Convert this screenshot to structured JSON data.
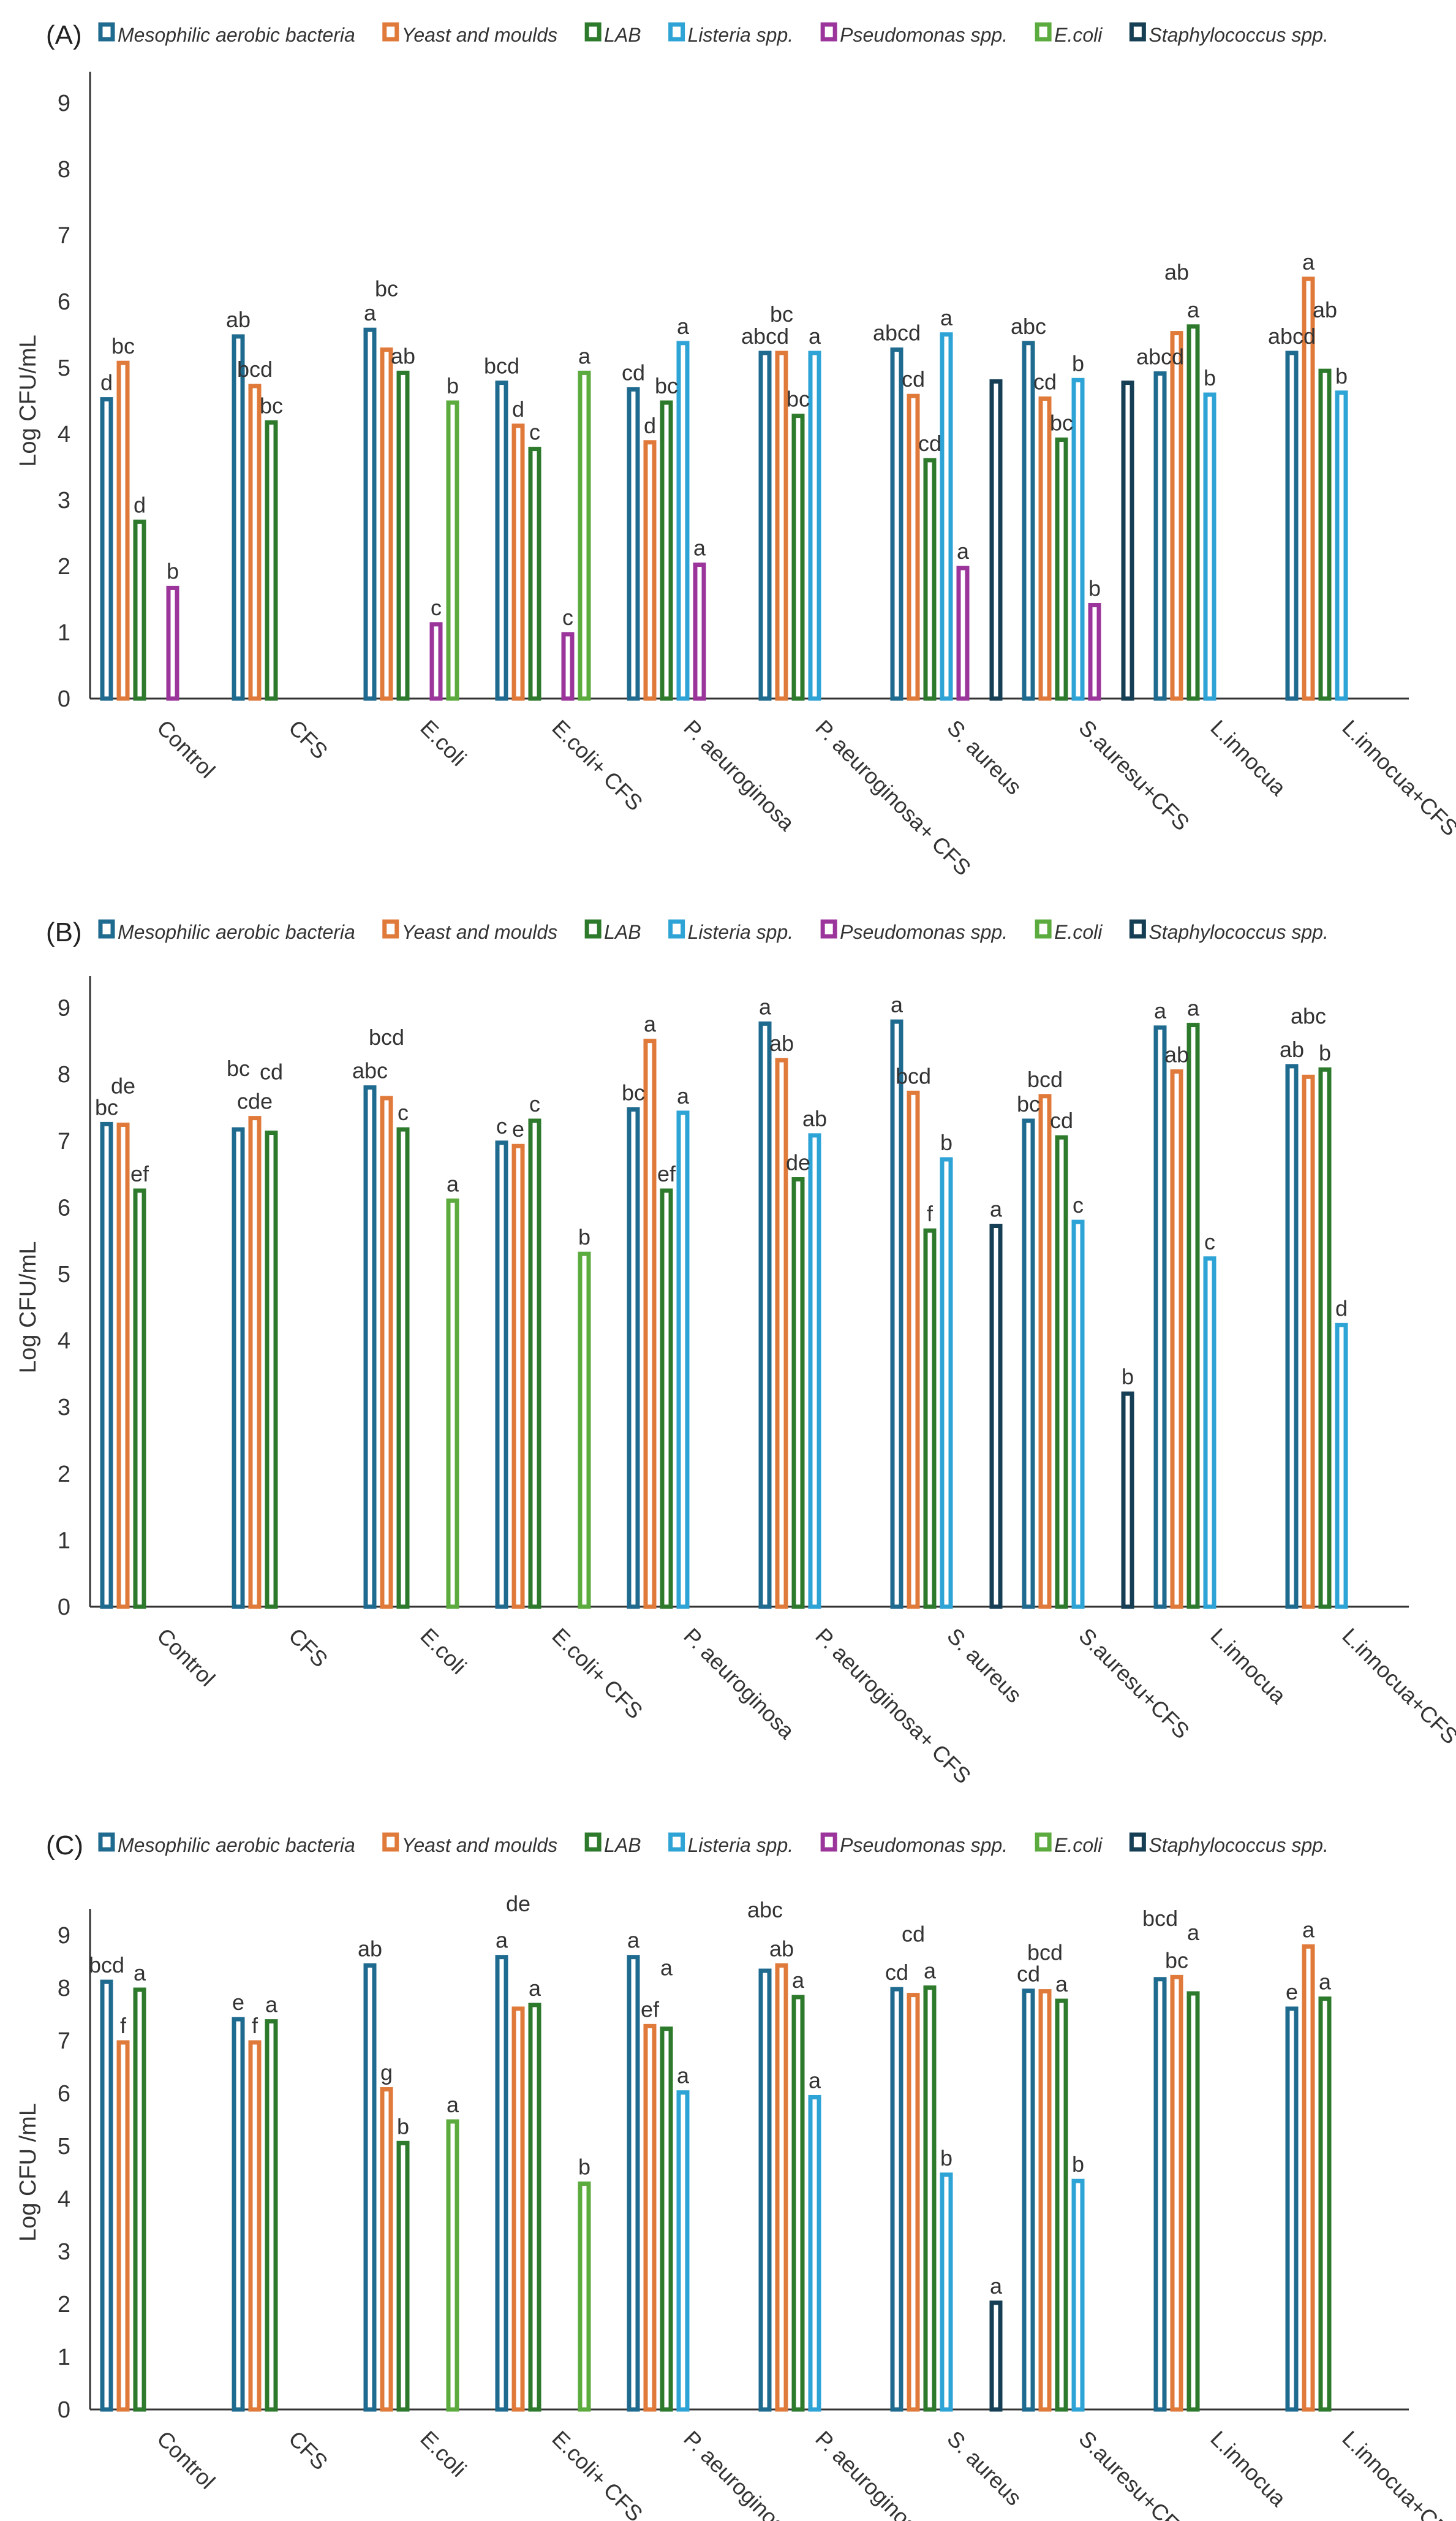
{
  "chart_data": [
    {
      "type": "bar",
      "panel_label": "(A)",
      "ylabel": "Log CFU/mL",
      "ylim": [
        0,
        9
      ],
      "yticks": [
        "0",
        "1",
        "2",
        "3",
        "4",
        "5",
        "6",
        "7",
        "8",
        "9"
      ],
      "legend_position": "top",
      "categories": [
        "Control",
        "CFS",
        "E.coli",
        "E.coli+ CFS",
        "P. aeuroginosa",
        "P. aeuroginosa+ CFS",
        "S. aureus",
        "S.auresu+CFS",
        "L.innocua",
        "L.innocua+CFS"
      ],
      "series": [
        {
          "name": "Mesophilic aerobic bacteria",
          "color": "#1f6a8f",
          "values": [
            4.55,
            5.5,
            5.6,
            4.8,
            4.7,
            5.25,
            5.3,
            5.4,
            4.94,
            5.25
          ],
          "letters": [
            "d",
            "ab",
            "a",
            "bcd",
            "cd",
            "abcd",
            "abcd",
            "abc",
            "abcd",
            "abcd"
          ]
        },
        {
          "name": "Yeast and moulds",
          "color": "#e07a3a",
          "values": [
            5.1,
            4.75,
            5.3,
            4.15,
            3.9,
            5.25,
            4.6,
            4.56,
            5.55,
            6.37
          ],
          "letters": [
            "bc",
            "bcd",
            "bc",
            "d",
            "d",
            "bc",
            "cd",
            "cd",
            "ab",
            "a"
          ]
        },
        {
          "name": "LAB",
          "color": "#2d7a2d",
          "values": [
            2.7,
            4.2,
            4.95,
            3.8,
            4.5,
            4.3,
            3.63,
            3.94,
            5.65,
            4.98
          ],
          "letters": [
            "d",
            "bc",
            "ab",
            "c",
            "bc",
            "bc",
            "cd",
            "bc",
            "a",
            "ab"
          ]
        },
        {
          "name": "Listeria spp.",
          "color": "#2ea3d6",
          "values": [
            null,
            null,
            null,
            null,
            5.4,
            5.25,
            5.53,
            4.84,
            4.62,
            4.65
          ],
          "letters": [
            null,
            null,
            null,
            null,
            "a",
            "a",
            "a",
            "b",
            "b",
            "b"
          ]
        },
        {
          "name": "Pseudomonas spp.",
          "color": "#9b359b",
          "values": [
            1.7,
            null,
            1.15,
            1.0,
            2.05,
            null,
            2.0,
            1.44,
            null,
            null
          ],
          "letters": [
            "b",
            null,
            "c",
            "c",
            "a",
            null,
            "a",
            "b",
            null,
            null
          ]
        },
        {
          "name": "E.coli",
          "color": "#5cab3f",
          "values": [
            null,
            null,
            4.5,
            4.95,
            null,
            null,
            null,
            null,
            null,
            null
          ],
          "letters": [
            null,
            null,
            "b",
            "a",
            null,
            null,
            null,
            null,
            null,
            null
          ]
        },
        {
          "name": "Staphylococcus spp.",
          "color": "#163f55",
          "values": [
            null,
            null,
            null,
            null,
            null,
            null,
            4.82,
            4.8,
            null,
            null
          ],
          "letters": [
            null,
            null,
            null,
            null,
            null,
            null,
            null,
            null,
            null,
            null
          ]
        }
      ]
    },
    {
      "type": "bar",
      "panel_label": "(B)",
      "ylabel": "Log CFU/mL",
      "ylim": [
        0,
        9
      ],
      "yticks": [
        "0",
        "1",
        "2",
        "3",
        "4",
        "5",
        "6",
        "7",
        "8",
        "9"
      ],
      "legend_position": "top",
      "categories": [
        "Control",
        "CFS",
        "E.coli",
        "E.coli+ CFS",
        "P. aeuroginosa",
        "P. aeuroginosa+ CFS",
        "S. aureus",
        "S.auresu+CFS",
        "L.innocua",
        "L.innocua+CFS"
      ],
      "series": [
        {
          "name": "Mesophilic aerobic bacteria",
          "color": "#1f6a8f",
          "values": [
            7.28,
            7.2,
            7.83,
            7.0,
            7.5,
            8.79,
            8.82,
            7.33,
            8.73,
            8.15
          ],
          "letters": [
            "bc",
            "bc",
            "abc",
            "c",
            "bc",
            "a",
            "a",
            "bc",
            "a",
            "ab"
          ]
        },
        {
          "name": "Yeast and moulds",
          "color": "#e07a3a",
          "values": [
            7.27,
            7.37,
            7.67,
            6.95,
            8.53,
            8.24,
            7.75,
            7.7,
            8.07,
            7.99
          ],
          "letters": [
            "de",
            "cde",
            "bcd",
            "e",
            "a",
            "ab",
            "bcd",
            "bcd",
            "ab",
            "abc"
          ]
        },
        {
          "name": "LAB",
          "color": "#2d7a2d",
          "values": [
            6.28,
            7.15,
            7.2,
            7.33,
            6.28,
            6.45,
            5.68,
            7.08,
            8.77,
            8.1
          ],
          "letters": [
            "ef",
            "cd",
            "c",
            "c",
            "ef",
            "de",
            "f",
            "cd",
            "a",
            "b"
          ]
        },
        {
          "name": "Listeria spp.",
          "color": "#2ea3d6",
          "values": [
            null,
            null,
            null,
            null,
            7.45,
            7.11,
            6.75,
            5.81,
            5.26,
            4.26
          ],
          "letters": [
            null,
            null,
            null,
            null,
            "a",
            "ab",
            "b",
            "c",
            "c",
            "d"
          ]
        },
        {
          "name": "Pseudomonas spp.",
          "color": "#9b359b",
          "values": [
            null,
            null,
            null,
            null,
            null,
            null,
            null,
            null,
            null,
            null
          ],
          "letters": [
            null,
            null,
            null,
            null,
            null,
            null,
            null,
            null,
            null,
            null
          ]
        },
        {
          "name": "E.coli",
          "color": "#5cab3f",
          "values": [
            null,
            null,
            6.13,
            5.33,
            null,
            null,
            null,
            null,
            null,
            null
          ],
          "letters": [
            null,
            null,
            "a",
            "b",
            null,
            null,
            null,
            null,
            null,
            null
          ]
        },
        {
          "name": "Staphylococcus spp.",
          "color": "#163f55",
          "values": [
            null,
            null,
            null,
            null,
            null,
            null,
            5.75,
            3.23,
            null,
            null
          ],
          "letters": [
            null,
            null,
            null,
            null,
            null,
            null,
            "a",
            "b",
            null,
            null
          ]
        }
      ]
    },
    {
      "type": "bar",
      "panel_label": "(C)",
      "ylabel": "Log CFU /mL",
      "ylim": [
        0,
        9
      ],
      "yticks": [
        "0",
        "1",
        "2",
        "3",
        "4",
        "5",
        "6",
        "7",
        "8",
        "9"
      ],
      "legend_position": "top",
      "categories": [
        "Control",
        "CFS",
        "E.coli",
        "E.coli+ CFS",
        "P. aeuroginosa",
        "P. aeuroginosa+ CFS",
        "S. aureus",
        "S.auresu+CFS",
        "L.innocua",
        "L.innocua+CFS"
      ],
      "series": [
        {
          "name": "Mesophilic aerobic bacteria",
          "color": "#1f6a8f",
          "values": [
            8.15,
            7.44,
            8.46,
            8.62,
            8.62,
            8.36,
            8.01,
            7.98,
            8.2,
            7.64
          ],
          "letters": [
            "bcd",
            "e",
            "ab",
            "a",
            "a",
            "abc",
            "cd",
            "cd",
            "bcd",
            "e"
          ]
        },
        {
          "name": "Yeast and moulds",
          "color": "#e07a3a",
          "values": [
            7.0,
            7.0,
            6.11,
            7.64,
            7.31,
            8.46,
            7.9,
            7.97,
            8.24,
            8.82
          ],
          "letters": [
            "f",
            "f",
            "g",
            "de",
            "ef",
            "ab",
            "cd",
            "bcd",
            "bc",
            "a"
          ]
        },
        {
          "name": "LAB",
          "color": "#2d7a2d",
          "values": [
            8.0,
            7.4,
            5.09,
            7.71,
            7.26,
            7.86,
            8.04,
            7.79,
            7.93,
            7.83
          ],
          "letters": [
            "a",
            "a",
            "b",
            "a",
            "a",
            "a",
            "a",
            "a",
            "a",
            "a"
          ]
        },
        {
          "name": "Listeria spp.",
          "color": "#2ea3d6",
          "values": [
            null,
            null,
            null,
            null,
            6.05,
            5.96,
            4.49,
            4.37,
            null,
            null
          ],
          "letters": [
            null,
            null,
            null,
            null,
            "a",
            "a",
            "b",
            "b",
            null,
            null
          ]
        },
        {
          "name": "Pseudomonas spp.",
          "color": "#9b359b",
          "values": [
            null,
            null,
            null,
            null,
            null,
            null,
            null,
            null,
            null,
            null
          ],
          "letters": [
            null,
            null,
            null,
            null,
            null,
            null,
            null,
            null,
            null,
            null
          ]
        },
        {
          "name": "E.coli",
          "color": "#5cab3f",
          "values": [
            null,
            null,
            5.5,
            4.32,
            null,
            null,
            null,
            null,
            null,
            null
          ],
          "letters": [
            null,
            null,
            "a",
            "b",
            null,
            null,
            null,
            null,
            null,
            null
          ]
        },
        {
          "name": "Staphylococcus spp.",
          "color": "#163f55",
          "values": [
            null,
            null,
            null,
            null,
            null,
            null,
            2.06,
            null,
            null,
            null
          ],
          "letters": [
            null,
            null,
            null,
            null,
            null,
            null,
            "a",
            null,
            null,
            null
          ]
        }
      ]
    }
  ]
}
